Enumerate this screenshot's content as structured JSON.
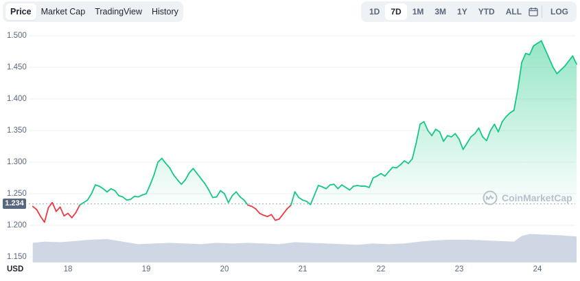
{
  "tabs_left": [
    "Price",
    "Market Cap",
    "TradingView",
    "History"
  ],
  "tabs_left_active": "Price",
  "tabs_right": [
    "1D",
    "7D",
    "1M",
    "3M",
    "1Y",
    "YTD",
    "ALL"
  ],
  "tabs_right_active": "7D",
  "calendar_icon": "calendar-icon",
  "log_label": "LOG",
  "current_price_label": "1.234",
  "currency_label": "USD",
  "watermark_text": "CoinMarketCap",
  "colors": {
    "up": "#16c784",
    "down": "#ea3943",
    "volume": "#cfd6e4",
    "grid": "#eff2f5",
    "text": "#58667e"
  },
  "chart_data": {
    "type": "area",
    "y_ticks": [
      "1.500",
      "1.450",
      "1.400",
      "1.350",
      "1.300",
      "1.250",
      "1.200",
      "1.150"
    ],
    "x_ticks": [
      "18",
      "19",
      "20",
      "21",
      "22",
      "23",
      "24"
    ],
    "ylim": [
      1.14,
      1.505
    ],
    "xlim": [
      17.55,
      24.5
    ],
    "reference_price": 1.234,
    "series": [
      {
        "values": [
          [
            17.55,
            1.23
          ],
          [
            17.6,
            1.225
          ],
          [
            17.65,
            1.214
          ],
          [
            17.7,
            1.205
          ],
          [
            17.75,
            1.228
          ],
          [
            17.8,
            1.236
          ],
          [
            17.85,
            1.222
          ],
          [
            17.9,
            1.229
          ],
          [
            17.95,
            1.215
          ],
          [
            18.0,
            1.219
          ],
          [
            18.05,
            1.212
          ],
          [
            18.1,
            1.22
          ],
          [
            18.15,
            1.232
          ],
          [
            18.2,
            1.236
          ],
          [
            18.25,
            1.24
          ],
          [
            18.3,
            1.25
          ],
          [
            18.35,
            1.264
          ],
          [
            18.4,
            1.262
          ],
          [
            18.45,
            1.258
          ],
          [
            18.5,
            1.253
          ],
          [
            18.55,
            1.258
          ],
          [
            18.6,
            1.255
          ],
          [
            18.65,
            1.247
          ],
          [
            18.7,
            1.245
          ],
          [
            18.75,
            1.24
          ],
          [
            18.8,
            1.241
          ],
          [
            18.85,
            1.246
          ],
          [
            18.9,
            1.245
          ],
          [
            18.95,
            1.248
          ],
          [
            19.0,
            1.25
          ],
          [
            19.05,
            1.264
          ],
          [
            19.1,
            1.28
          ],
          [
            19.15,
            1.3
          ],
          [
            19.2,
            1.306
          ],
          [
            19.25,
            1.298
          ],
          [
            19.3,
            1.291
          ],
          [
            19.35,
            1.28
          ],
          [
            19.4,
            1.272
          ],
          [
            19.45,
            1.265
          ],
          [
            19.5,
            1.272
          ],
          [
            19.55,
            1.283
          ],
          [
            19.6,
            1.29
          ],
          [
            19.65,
            1.282
          ],
          [
            19.7,
            1.274
          ],
          [
            19.75,
            1.266
          ],
          [
            19.8,
            1.256
          ],
          [
            19.85,
            1.244
          ],
          [
            19.9,
            1.245
          ],
          [
            19.95,
            1.255
          ],
          [
            20.0,
            1.25
          ],
          [
            20.05,
            1.236
          ],
          [
            20.1,
            1.247
          ],
          [
            20.15,
            1.253
          ],
          [
            20.2,
            1.245
          ],
          [
            20.25,
            1.24
          ],
          [
            20.3,
            1.232
          ],
          [
            20.35,
            1.23
          ],
          [
            20.4,
            1.226
          ],
          [
            20.45,
            1.219
          ],
          [
            20.5,
            1.216
          ],
          [
            20.55,
            1.214
          ],
          [
            20.6,
            1.217
          ],
          [
            20.65,
            1.208
          ],
          [
            20.7,
            1.21
          ],
          [
            20.75,
            1.218
          ],
          [
            20.8,
            1.226
          ],
          [
            20.85,
            1.232
          ],
          [
            20.9,
            1.253
          ],
          [
            20.95,
            1.244
          ],
          [
            21.0,
            1.24
          ],
          [
            21.05,
            1.238
          ],
          [
            21.1,
            1.233
          ],
          [
            21.15,
            1.248
          ],
          [
            21.2,
            1.263
          ],
          [
            21.25,
            1.261
          ],
          [
            21.3,
            1.258
          ],
          [
            21.35,
            1.264
          ],
          [
            21.4,
            1.265
          ],
          [
            21.45,
            1.258
          ],
          [
            21.5,
            1.264
          ],
          [
            21.55,
            1.26
          ],
          [
            21.6,
            1.256
          ],
          [
            21.65,
            1.262
          ],
          [
            21.7,
            1.263
          ],
          [
            21.75,
            1.262
          ],
          [
            21.8,
            1.262
          ],
          [
            21.85,
            1.26
          ],
          [
            21.9,
            1.275
          ],
          [
            21.95,
            1.278
          ],
          [
            22.0,
            1.282
          ],
          [
            22.05,
            1.278
          ],
          [
            22.1,
            1.285
          ],
          [
            22.15,
            1.292
          ],
          [
            22.2,
            1.291
          ],
          [
            22.25,
            1.296
          ],
          [
            22.3,
            1.302
          ],
          [
            22.35,
            1.298
          ],
          [
            22.4,
            1.305
          ],
          [
            22.45,
            1.33
          ],
          [
            22.5,
            1.36
          ],
          [
            22.55,
            1.364
          ],
          [
            22.6,
            1.35
          ],
          [
            22.65,
            1.342
          ],
          [
            22.7,
            1.352
          ],
          [
            22.75,
            1.348
          ],
          [
            22.8,
            1.333
          ],
          [
            22.85,
            1.342
          ],
          [
            22.9,
            1.34
          ],
          [
            22.95,
            1.345
          ],
          [
            23.0,
            1.336
          ],
          [
            23.05,
            1.32
          ],
          [
            23.1,
            1.33
          ],
          [
            23.15,
            1.34
          ],
          [
            23.2,
            1.345
          ],
          [
            23.25,
            1.354
          ],
          [
            23.3,
            1.34
          ],
          [
            23.35,
            1.334
          ],
          [
            23.4,
            1.35
          ],
          [
            23.45,
            1.36
          ],
          [
            23.5,
            1.348
          ],
          [
            23.55,
            1.364
          ],
          [
            23.6,
            1.372
          ],
          [
            23.65,
            1.378
          ],
          [
            23.7,
            1.382
          ],
          [
            23.75,
            1.416
          ],
          [
            23.8,
            1.458
          ],
          [
            23.85,
            1.472
          ],
          [
            23.9,
            1.47
          ],
          [
            23.95,
            1.484
          ],
          [
            24.0,
            1.488
          ],
          [
            24.05,
            1.492
          ],
          [
            24.1,
            1.478
          ],
          [
            24.15,
            1.464
          ],
          [
            24.2,
            1.45
          ],
          [
            24.25,
            1.44
          ],
          [
            24.3,
            1.446
          ],
          [
            24.35,
            1.452
          ],
          [
            24.4,
            1.46
          ],
          [
            24.45,
            1.468
          ],
          [
            24.5,
            1.455
          ]
        ]
      }
    ],
    "volume": [
      [
        17.55,
        0.62
      ],
      [
        17.7,
        0.66
      ],
      [
        17.9,
        0.64
      ],
      [
        18.1,
        0.68
      ],
      [
        18.3,
        0.72
      ],
      [
        18.5,
        0.74
      ],
      [
        18.7,
        0.66
      ],
      [
        18.9,
        0.58
      ],
      [
        19.1,
        0.6
      ],
      [
        19.3,
        0.62
      ],
      [
        19.5,
        0.6
      ],
      [
        19.7,
        0.58
      ],
      [
        19.9,
        0.62
      ],
      [
        20.1,
        0.6
      ],
      [
        20.3,
        0.62
      ],
      [
        20.5,
        0.6
      ],
      [
        20.7,
        0.58
      ],
      [
        20.9,
        0.64
      ],
      [
        21.1,
        0.62
      ],
      [
        21.3,
        0.6
      ],
      [
        21.5,
        0.58
      ],
      [
        21.7,
        0.56
      ],
      [
        21.9,
        0.6
      ],
      [
        22.1,
        0.58
      ],
      [
        22.3,
        0.6
      ],
      [
        22.5,
        0.66
      ],
      [
        22.7,
        0.7
      ],
      [
        22.9,
        0.72
      ],
      [
        23.1,
        0.72
      ],
      [
        23.3,
        0.7
      ],
      [
        23.5,
        0.68
      ],
      [
        23.7,
        0.66
      ],
      [
        23.8,
        0.84
      ],
      [
        23.9,
        0.9
      ],
      [
        24.1,
        0.88
      ],
      [
        24.3,
        0.86
      ],
      [
        24.5,
        0.82
      ]
    ]
  }
}
